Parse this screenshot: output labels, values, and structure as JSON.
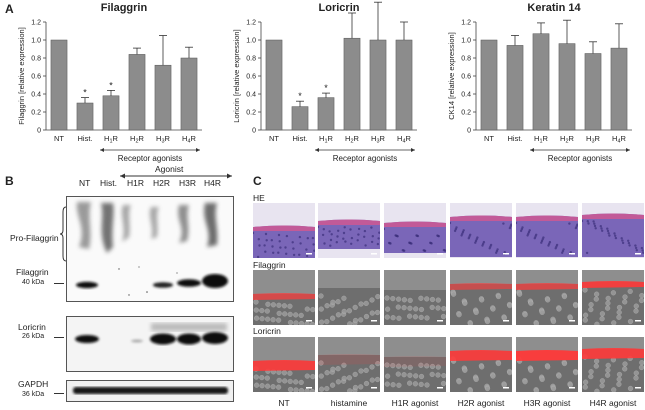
{
  "panels": {
    "a": "A",
    "b": "B",
    "c": "C"
  },
  "chart_data": [
    {
      "type": "bar",
      "title": "Filaggrin",
      "ylabel": "Filaggrin [relative expression]",
      "ylim": [
        0,
        1.2
      ],
      "yticks": [
        "0",
        "0.2",
        "0.4",
        "0.6",
        "0.8",
        "1.0",
        "1.2"
      ],
      "categories": [
        "NT",
        "Hist.",
        "H1R",
        "H2R",
        "H3R",
        "H4R"
      ],
      "values": [
        1.0,
        0.3,
        0.38,
        0.84,
        0.72,
        0.8
      ],
      "errors": [
        0,
        0.06,
        0.06,
        0.07,
        0.33,
        0.12
      ],
      "stars": [
        "",
        "*",
        "*",
        "",
        "",
        ""
      ],
      "group_label": "Receptor agonists"
    },
    {
      "type": "bar",
      "title": "Loricrin",
      "ylabel": "Loricrin [relative expression]",
      "ylim": [
        0,
        1.2
      ],
      "yticks": [
        "0",
        "0.2",
        "0.4",
        "0.6",
        "0.8",
        "1.0",
        "1.2"
      ],
      "categories": [
        "NT",
        "Hist.",
        "H1R",
        "H2R",
        "H3R",
        "H4R"
      ],
      "values": [
        1.0,
        0.26,
        0.36,
        1.02,
        1.0,
        1.0
      ],
      "errors": [
        0,
        0.06,
        0.05,
        0.28,
        0.42,
        0.2
      ],
      "stars": [
        "",
        "*",
        "*",
        "",
        "",
        ""
      ],
      "group_label": "Receptor agonists"
    },
    {
      "type": "bar",
      "title": "Keratin 14",
      "ylabel": "CK14 [relative expression]",
      "ylim": [
        0,
        1.2
      ],
      "yticks": [
        "0",
        "0.2",
        "0.4",
        "0.6",
        "0.8",
        "1.0",
        "1.2"
      ],
      "categories": [
        "NT",
        "Hist.",
        "H1R",
        "H2R",
        "H3R",
        "H4R"
      ],
      "values": [
        1.0,
        0.94,
        1.07,
        0.96,
        0.85,
        0.91
      ],
      "errors": [
        0,
        0.11,
        0.12,
        0.26,
        0.13,
        0.27
      ],
      "stars": [
        "",
        "",
        "",
        "",
        "",
        ""
      ],
      "group_label": "Receptor agonists"
    }
  ],
  "blot": {
    "lanes": [
      "NT",
      "Hist.",
      "H1R",
      "H2R",
      "H3R",
      "H4R"
    ],
    "agonist_label": "Agonist",
    "rows": [
      {
        "name": "Pro-Filaggrin",
        "kda": ""
      },
      {
        "name": "Filaggrin",
        "kda": "40 kDa"
      },
      {
        "name": "Loricrin",
        "kda": "26 kDa"
      },
      {
        "name": "GAPDH",
        "kda": "36 kDa"
      }
    ]
  },
  "histology": {
    "rows": [
      "HE",
      "Filaggrin",
      "Loricrin"
    ],
    "columns": [
      "NT",
      "histamine",
      "H1R agonist",
      "H2R agonist",
      "H3R agonist",
      "H4R agonist"
    ]
  }
}
